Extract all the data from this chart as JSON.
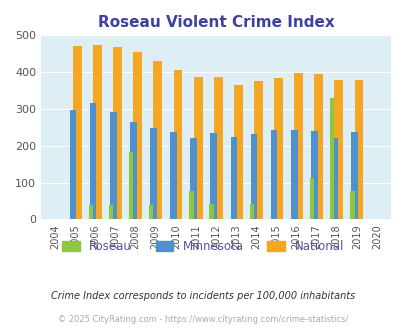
{
  "title": "Roseau Violent Crime Index",
  "years": [
    2004,
    2005,
    2006,
    2007,
    2008,
    2009,
    2010,
    2011,
    2012,
    2013,
    2014,
    2015,
    2016,
    2017,
    2018,
    2019,
    2020
  ],
  "roseau": [
    0,
    0,
    38,
    38,
    184,
    38,
    0,
    76,
    42,
    0,
    43,
    0,
    0,
    112,
    330,
    76,
    0
  ],
  "minnesota": [
    0,
    298,
    317,
    291,
    265,
    248,
    237,
    222,
    234,
    224,
    231,
    244,
    244,
    240,
    222,
    237,
    0
  ],
  "national": [
    0,
    470,
    474,
    467,
    454,
    431,
    405,
    387,
    387,
    365,
    376,
    383,
    397,
    394,
    380,
    379,
    0
  ],
  "ylim": [
    0,
    500
  ],
  "yticks": [
    0,
    100,
    200,
    300,
    400,
    500
  ],
  "color_roseau": "#8dc63f",
  "color_minnesota": "#4f90cd",
  "color_national": "#f5a623",
  "bg_color": "#ddeef5",
  "title_color": "#4040a0",
  "legend_roseau": "Roseau",
  "legend_minnesota": "Minnesota",
  "legend_national": "National",
  "footnote1": "Crime Index corresponds to incidents per 100,000 inhabitants",
  "footnote2": "© 2025 CityRating.com - https://www.cityrating.com/crime-statistics/",
  "bar_width": 0.22
}
